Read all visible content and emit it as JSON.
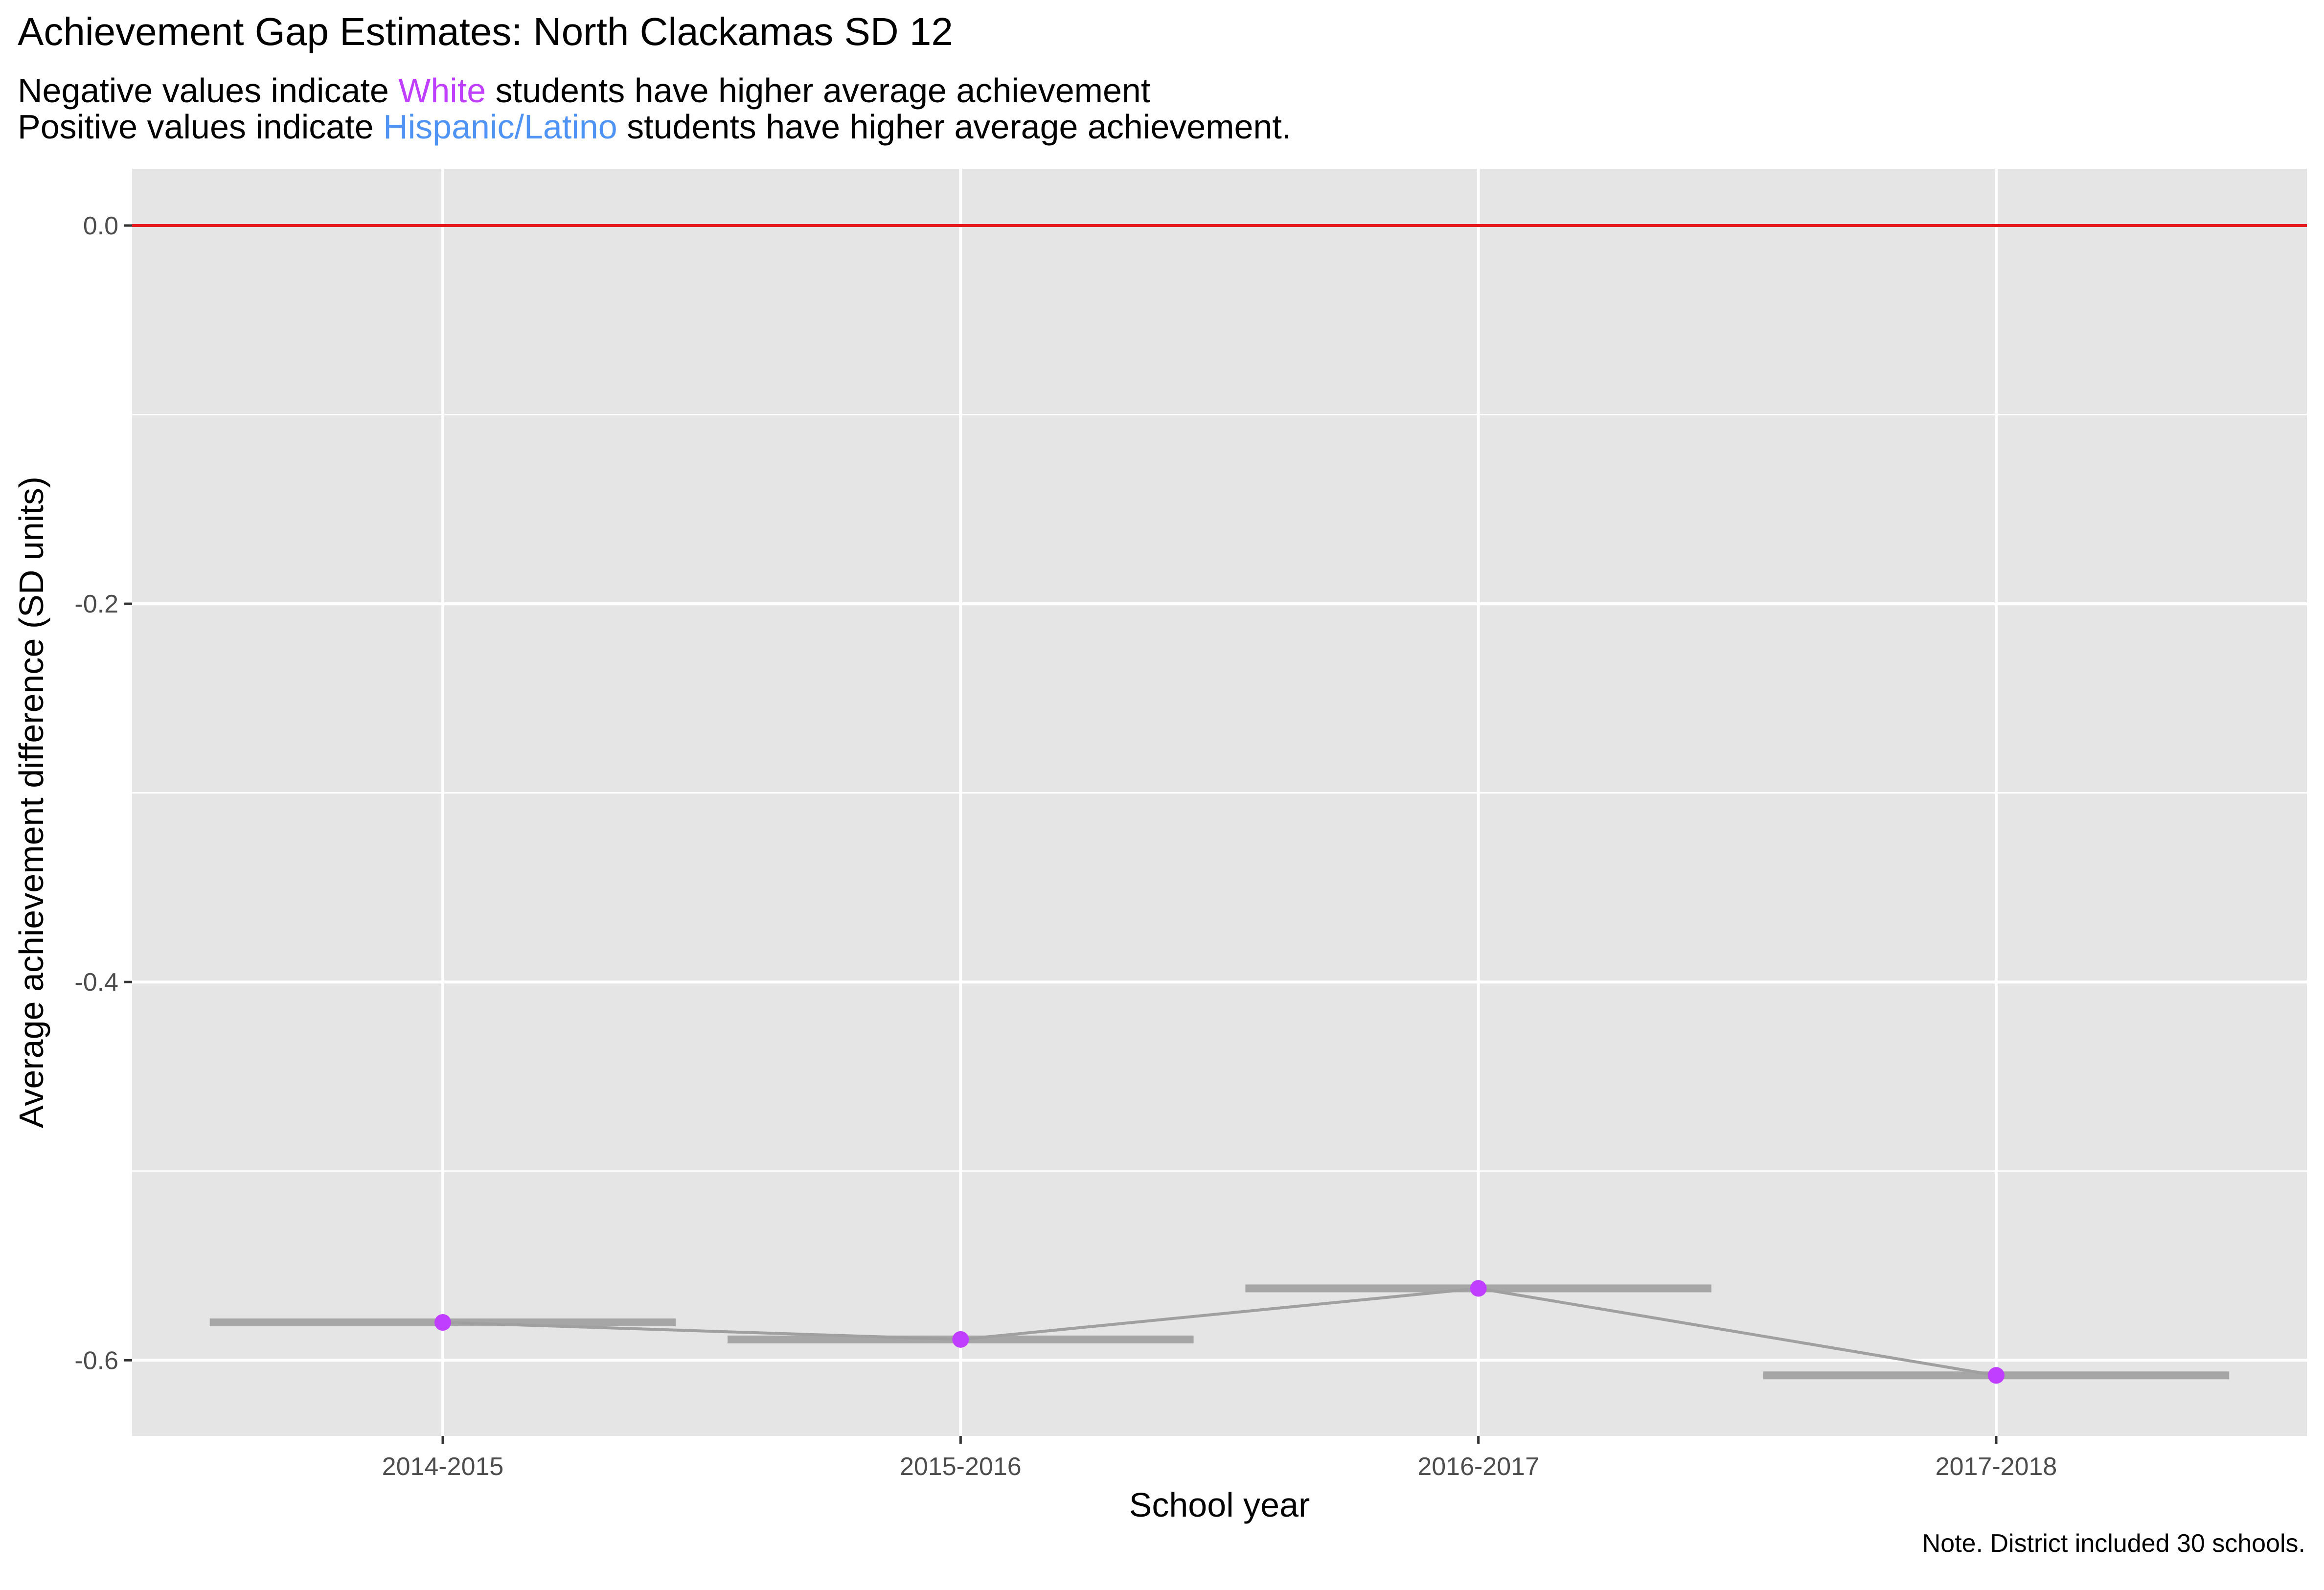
{
  "title": "Achievement Gap Estimates: North Clackamas SD 12",
  "subtitle": {
    "line1_prefix": "Negative values indicate ",
    "line1_highlight": "White",
    "line1_suffix": " students have higher average achievement",
    "line2_prefix": "Positive values indicate ",
    "line2_highlight": "Hispanic/Latino",
    "line2_suffix": " students have higher average achievement."
  },
  "caption": "Note. District included 30 schools.",
  "colors": {
    "panel_background": "#E5E5E5",
    "gridline": "#FFFFFF",
    "reference_line": "#E41A1C",
    "trend_line": "#A0A0A0",
    "interval_bar": "#A6A6A6",
    "point_white_higher": "#BF3EFF",
    "point_hispanic_higher": "#4F94F5"
  },
  "chart_data": {
    "type": "line",
    "xlabel": "School year",
    "ylabel": "Average achievement difference (SD units)",
    "categories": [
      "2014-2015",
      "2015-2016",
      "2016-2017",
      "2017-2018"
    ],
    "series": [
      {
        "values": [
          -0.58,
          -0.589,
          -0.562,
          -0.608
        ]
      }
    ],
    "reference_line_y": 0.0,
    "ylim": [
      -0.64,
      0.03
    ],
    "y_ticks": [
      0.0,
      -0.2,
      -0.4,
      -0.6
    ],
    "y_tick_labels": [
      "0.0",
      "-0.2",
      "-0.4",
      "-0.6"
    ],
    "grid": true,
    "legend": "none"
  }
}
